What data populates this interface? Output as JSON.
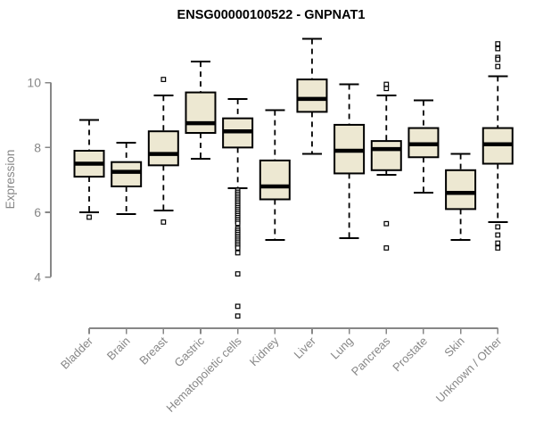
{
  "title": "ENSG00000100522 - GNPNAT1",
  "chart_data": {
    "type": "boxplot",
    "title": "ENSG00000100522 - GNPNAT1",
    "xlabel": "",
    "ylabel": "Expression",
    "yticks": [
      4,
      6,
      8,
      10
    ],
    "ylim": [
      2.6,
      11.6
    ],
    "grid": false,
    "legend": "none",
    "categories": [
      "Bladder",
      "Brain",
      "Breast",
      "Gastric",
      "Hematopoietic cells",
      "Kidney",
      "Liver",
      "Lung",
      "Pancreas",
      "Prostate",
      "Skin",
      "Unknown / Other"
    ],
    "series": [
      {
        "label": "Bladder",
        "whisker_low": 6.0,
        "q1": 7.1,
        "median": 7.5,
        "q3": 7.9,
        "whisker_high": 8.85,
        "outliers": [
          5.85
        ]
      },
      {
        "label": "Brain",
        "whisker_low": 5.95,
        "q1": 6.8,
        "median": 7.25,
        "q3": 7.55,
        "whisker_high": 8.15,
        "outliers": []
      },
      {
        "label": "Breast",
        "whisker_low": 6.05,
        "q1": 7.45,
        "median": 7.8,
        "q3": 8.5,
        "whisker_high": 9.6,
        "outliers": [
          5.7,
          10.1
        ]
      },
      {
        "label": "Gastric",
        "whisker_low": 7.65,
        "q1": 8.45,
        "median": 8.75,
        "q3": 9.7,
        "whisker_high": 10.65,
        "outliers": []
      },
      {
        "label": "Hematopoietic cells",
        "whisker_low": 6.75,
        "q1": 8.0,
        "median": 8.5,
        "q3": 8.9,
        "whisker_high": 9.5,
        "outliers": [
          6.68,
          6.62,
          6.56,
          6.5,
          6.44,
          6.38,
          6.32,
          6.26,
          6.2,
          6.14,
          6.08,
          6.02,
          5.96,
          5.9,
          5.84,
          5.78,
          5.72,
          5.66,
          5.5,
          5.44,
          5.38,
          5.32,
          5.26,
          5.2,
          5.14,
          5.08,
          5.02,
          4.96,
          4.9,
          4.75,
          4.1,
          3.1,
          2.8
        ]
      },
      {
        "label": "Kidney",
        "whisker_low": 5.15,
        "q1": 6.4,
        "median": 6.8,
        "q3": 7.6,
        "whisker_high": 9.15,
        "outliers": []
      },
      {
        "label": "Liver",
        "whisker_low": 7.8,
        "q1": 9.1,
        "median": 9.5,
        "q3": 10.1,
        "whisker_high": 11.35,
        "outliers": []
      },
      {
        "label": "Lung",
        "whisker_low": 5.2,
        "q1": 7.2,
        "median": 7.9,
        "q3": 8.7,
        "whisker_high": 9.95,
        "outliers": []
      },
      {
        "label": "Pancreas",
        "whisker_low": 7.15,
        "q1": 7.3,
        "median": 7.95,
        "q3": 8.2,
        "whisker_high": 9.6,
        "outliers": [
          9.95,
          9.82,
          5.65,
          4.9
        ]
      },
      {
        "label": "Prostate",
        "whisker_low": 6.6,
        "q1": 7.7,
        "median": 8.1,
        "q3": 8.6,
        "whisker_high": 9.45,
        "outliers": []
      },
      {
        "label": "Skin",
        "whisker_low": 5.15,
        "q1": 6.1,
        "median": 6.6,
        "q3": 7.3,
        "whisker_high": 7.8,
        "outliers": []
      },
      {
        "label": "Unknown / Other",
        "whisker_low": 5.7,
        "q1": 7.5,
        "median": 8.1,
        "q3": 8.6,
        "whisker_high": 10.2,
        "outliers": [
          11.2,
          11.05,
          10.78,
          10.72,
          10.5,
          5.55,
          5.3,
          5.05,
          4.9
        ]
      }
    ],
    "colors": {
      "background": "#ffffff",
      "box_fill": "#ede8d2",
      "box_stroke": "#000000",
      "median_color": "#000000",
      "whisker_color": "#000000",
      "outlier_stroke": "#000000",
      "axis_color": "#878787",
      "tick_label_color": "#878787",
      "title_color": "#000000"
    }
  }
}
